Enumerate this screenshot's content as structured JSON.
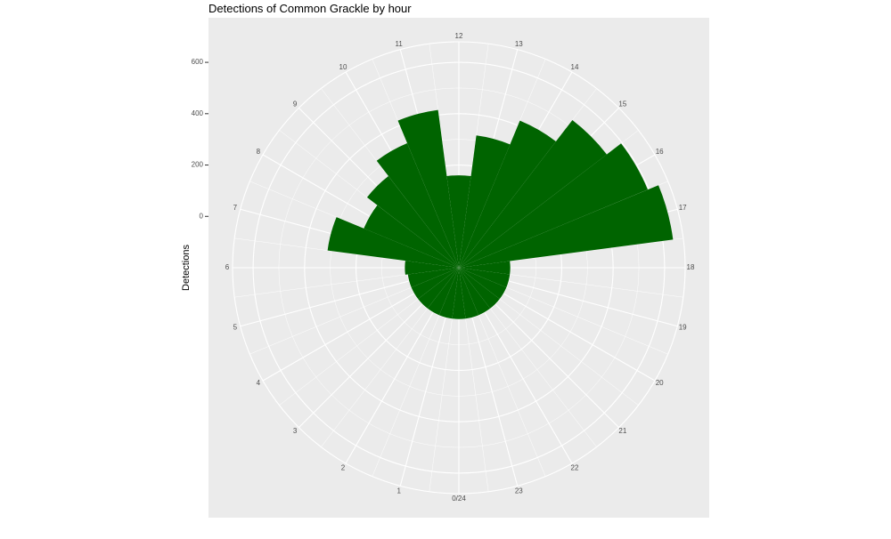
{
  "chart_data": {
    "type": "bar",
    "coord": "polar",
    "title": "Detections of Common Grackle by hour",
    "xlabel": "",
    "ylabel": "Detections",
    "hour_labels": [
      "0/24",
      "1",
      "2",
      "3",
      "4",
      "5",
      "6",
      "7",
      "8",
      "9",
      "10",
      "11",
      "12",
      "13",
      "14",
      "15",
      "16",
      "17",
      "18",
      "19",
      "20",
      "21",
      "22",
      "23"
    ],
    "hours": [
      0,
      1,
      2,
      3,
      4,
      5,
      6,
      7,
      8,
      9,
      10,
      11,
      12,
      13,
      14,
      15,
      16,
      17,
      18,
      19,
      20,
      21,
      22,
      23
    ],
    "values": [
      0,
      0,
      0,
      0,
      0,
      0,
      10,
      315,
      200,
      250,
      325,
      420,
      160,
      320,
      420,
      525,
      595,
      640,
      0,
      0,
      0,
      0,
      0,
      0
    ],
    "y_ticks": [
      0,
      200,
      400,
      600
    ],
    "ylim": [
      -200,
      680
    ],
    "bar_color": "#006400",
    "panel_bg": "#ebebeb",
    "grid_color": "#ffffff",
    "legend": "none"
  }
}
